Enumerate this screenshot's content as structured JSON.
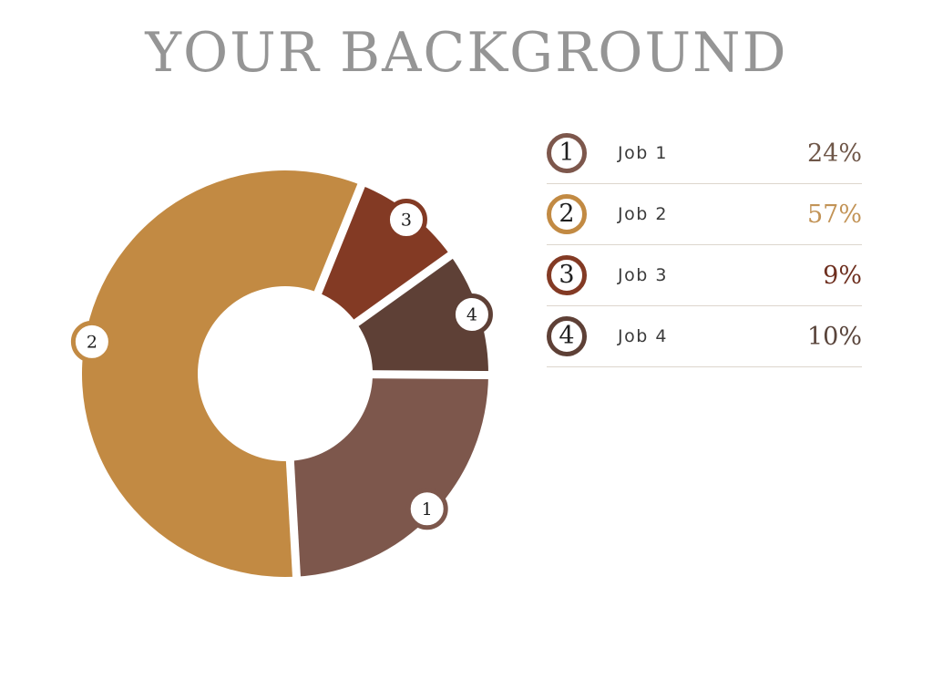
{
  "title": "YOUR BACKGROUND",
  "colors": {
    "background": "#ffffff",
    "title_text": "#959595",
    "legend_label_text": "#3a3a3a",
    "legend_number_text": "#1f1f1f",
    "badge_number_text": "#1c1c1c",
    "divider": "#ddd6cd"
  },
  "chart_data": {
    "type": "pie",
    "subtype": "donut",
    "title": "YOUR BACKGROUND",
    "units": "%",
    "total": 100,
    "segments": [
      {
        "num": "1",
        "label": "Job 1",
        "value": 24,
        "display": "24%",
        "color": "#7d574c",
        "pct_color": "#6f5749"
      },
      {
        "num": "2",
        "label": "Job 2",
        "value": 57,
        "display": "57%",
        "color": "#c28a43",
        "pct_color": "#c29356"
      },
      {
        "num": "3",
        "label": "Job 3",
        "value": 9,
        "display": "9%",
        "color": "#833a24",
        "pct_color": "#6e2f1f"
      },
      {
        "num": "4",
        "label": "Job 4",
        "value": 10,
        "display": "10%",
        "color": "#5e4036",
        "pct_color": "#59443b"
      }
    ],
    "layout": {
      "start_angle_deg": 22,
      "clockwise": true,
      "draw_order": [
        3,
        4,
        1,
        2
      ],
      "donut_hole_ratio": 0.43,
      "segment_gap": true,
      "numbered_badges_on_ring": true,
      "legend_position": "right",
      "grid": false
    }
  }
}
